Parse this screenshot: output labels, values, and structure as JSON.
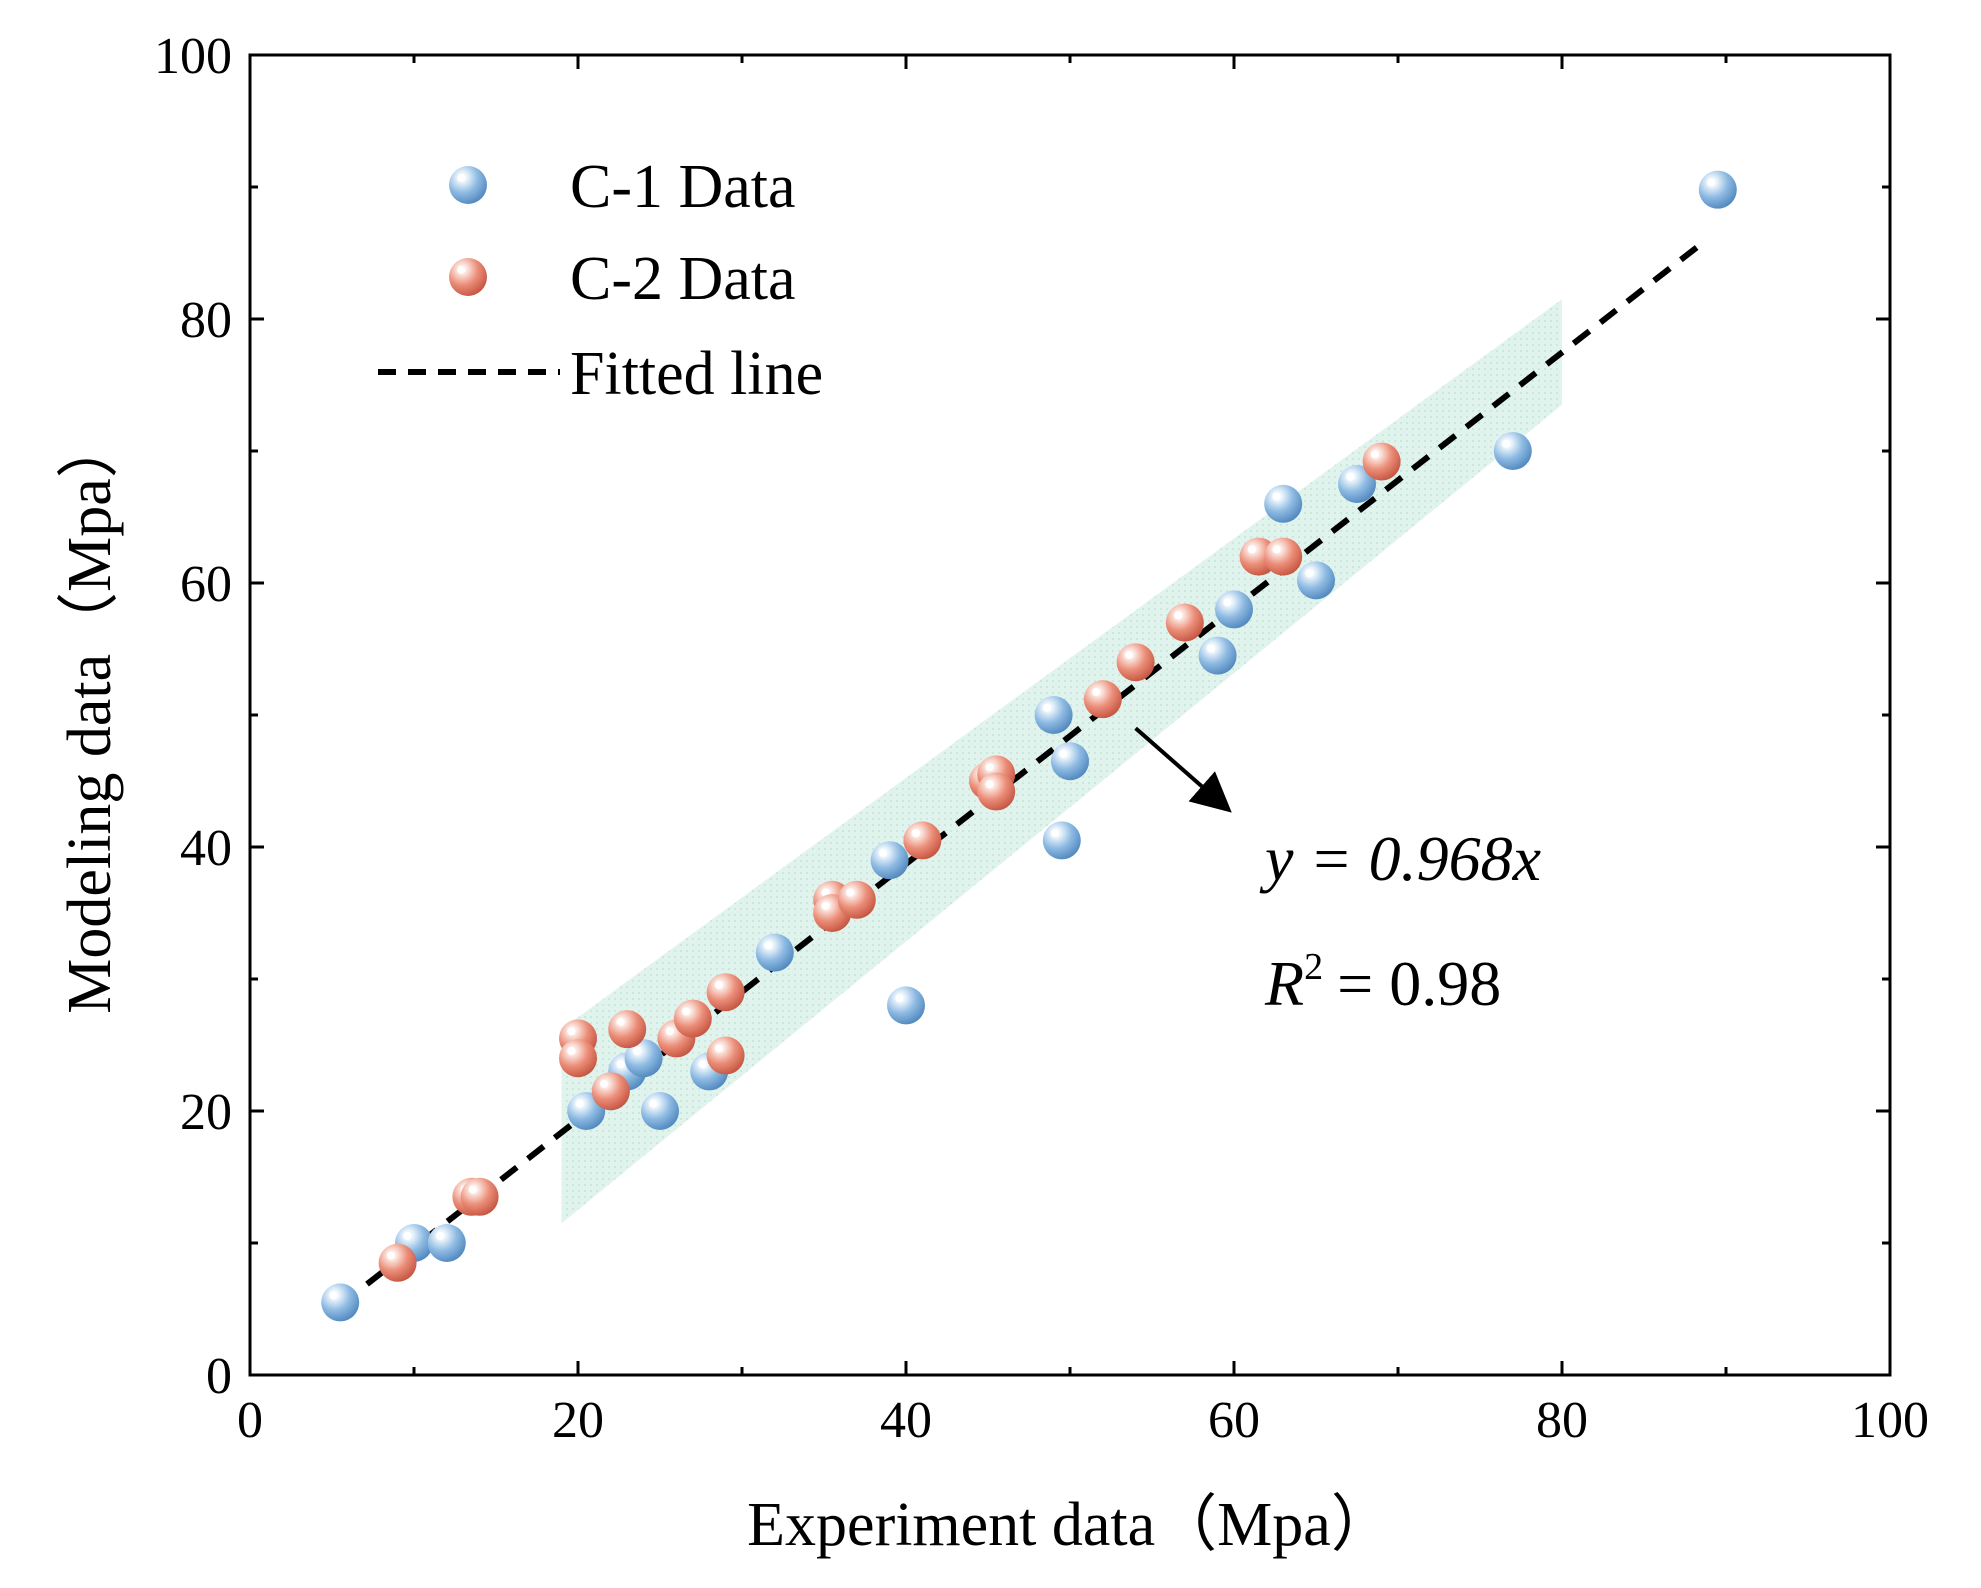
{
  "chart_data": {
    "type": "scatter",
    "xlabel": "Experiment data（Mpa）",
    "ylabel": "Modeling data（Mpa）",
    "xlim": [
      0,
      100
    ],
    "ylim": [
      0,
      100
    ],
    "x_ticks": [
      0,
      20,
      40,
      60,
      80,
      100
    ],
    "y_ticks": [
      0,
      20,
      40,
      60,
      80,
      100
    ],
    "x_tick_labels": [
      "0",
      "20",
      "40",
      "60",
      "80",
      "100"
    ],
    "y_tick_labels": [
      "0",
      "20",
      "40",
      "60",
      "80",
      "100"
    ],
    "grid": false,
    "legend_position": "top-left",
    "series": [
      {
        "name": "C-1 Data",
        "color": "#7fb0dc",
        "marker": "sphere",
        "points": [
          [
            5.5,
            5.5
          ],
          [
            10,
            10
          ],
          [
            12,
            10
          ],
          [
            20.5,
            20
          ],
          [
            22,
            21.5
          ],
          [
            23,
            23
          ],
          [
            24,
            24
          ],
          [
            25,
            20
          ],
          [
            28,
            23
          ],
          [
            32,
            32
          ],
          [
            39,
            39
          ],
          [
            40,
            28
          ],
          [
            49,
            50
          ],
          [
            49.5,
            40.5
          ],
          [
            50,
            46.5
          ],
          [
            59,
            54.5
          ],
          [
            60,
            58
          ],
          [
            63,
            66
          ],
          [
            65,
            60.2
          ],
          [
            67.5,
            67.5
          ],
          [
            77,
            70
          ],
          [
            89.5,
            89.8
          ]
        ]
      },
      {
        "name": "C-2 Data",
        "color": "#e8826e",
        "marker": "sphere",
        "points": [
          [
            9,
            8.5
          ],
          [
            13.5,
            13.5
          ],
          [
            14,
            13.5
          ],
          [
            20,
            25.5
          ],
          [
            20,
            24
          ],
          [
            22,
            21.5
          ],
          [
            23,
            26.2
          ],
          [
            26,
            25.5
          ],
          [
            27,
            27
          ],
          [
            29,
            29
          ],
          [
            29,
            24.2
          ],
          [
            35.5,
            36
          ],
          [
            35.5,
            35
          ],
          [
            37,
            36
          ],
          [
            41,
            40.5
          ],
          [
            45,
            45
          ],
          [
            45.5,
            45.5
          ],
          [
            45.5,
            44.2
          ],
          [
            52,
            51.2
          ],
          [
            54,
            54
          ],
          [
            57,
            57
          ],
          [
            61.5,
            62
          ],
          [
            63,
            62
          ],
          [
            69,
            69.2
          ]
        ]
      },
      {
        "name": "Fitted line",
        "type": "line",
        "style": "dashed",
        "color": "#000000",
        "x": [
          5.5,
          88.5
        ],
        "y": [
          5.3,
          85.7
        ]
      }
    ],
    "confidence_band": {
      "color": "#d4eee6",
      "x_range": [
        19,
        80
      ],
      "y_lower": [
        11.5,
        73.5
      ],
      "y_upper": [
        26.2,
        81.5
      ]
    },
    "annotation": {
      "equation": "y = 0.968x",
      "r2_prefix": "R",
      "r2_sup": "2",
      "r2_value": "= 0.98",
      "arrow_from": [
        54,
        49
      ],
      "arrow_to": [
        59.5,
        43
      ]
    }
  }
}
